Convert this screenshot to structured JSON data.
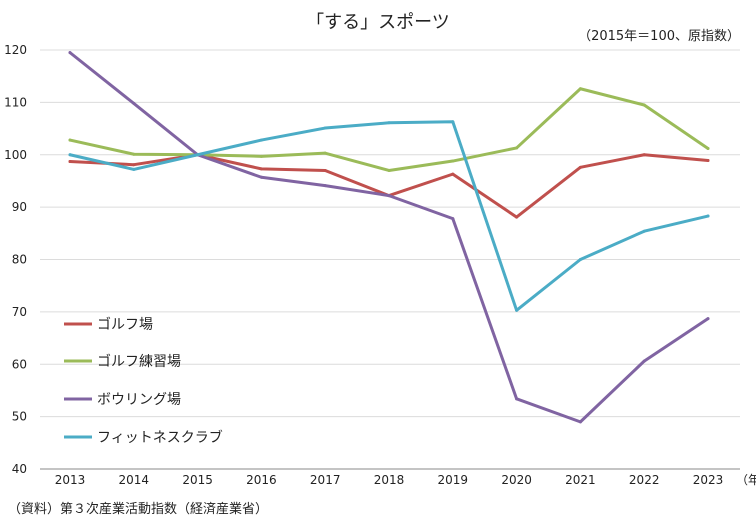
{
  "chart_data": {
    "type": "line",
    "title": "「する」スポーツ",
    "note": "（2015年＝100、原指数）",
    "x_unit": "（年）",
    "source": "（資料）第３次産業活動指数（経済産業省）",
    "categories": [
      "2013",
      "2014",
      "2015",
      "2016",
      "2017",
      "2018",
      "2019",
      "2020",
      "2021",
      "2022",
      "2023"
    ],
    "ylim": [
      40,
      120
    ],
    "yticks": [
      40,
      50,
      60,
      70,
      80,
      90,
      100,
      110,
      120
    ],
    "grid": true,
    "legend_position": "left",
    "series": [
      {
        "name": "ゴルフ場",
        "color": "#c0504d",
        "values": [
          98.7,
          98.1,
          100,
          97.3,
          97.0,
          92.2,
          96.3,
          88.1,
          97.6,
          100.0,
          98.9
        ]
      },
      {
        "name": "ゴルフ練習場",
        "color": "#9bbb59",
        "values": [
          102.8,
          100.1,
          100,
          99.7,
          100.3,
          97.0,
          98.8,
          101.3,
          112.6,
          109.5,
          101.2
        ]
      },
      {
        "name": "ボウリング場",
        "color": "#8064a2",
        "values": [
          119.5,
          109.8,
          100,
          95.7,
          94.1,
          92.2,
          87.8,
          53.4,
          49.0,
          60.6,
          68.7
        ]
      },
      {
        "name": "フィットネスクラブ",
        "color": "#4bacc6",
        "values": [
          100.0,
          97.2,
          100,
          102.8,
          105.1,
          106.1,
          106.3,
          70.3,
          80.0,
          85.4,
          88.3
        ]
      }
    ]
  }
}
